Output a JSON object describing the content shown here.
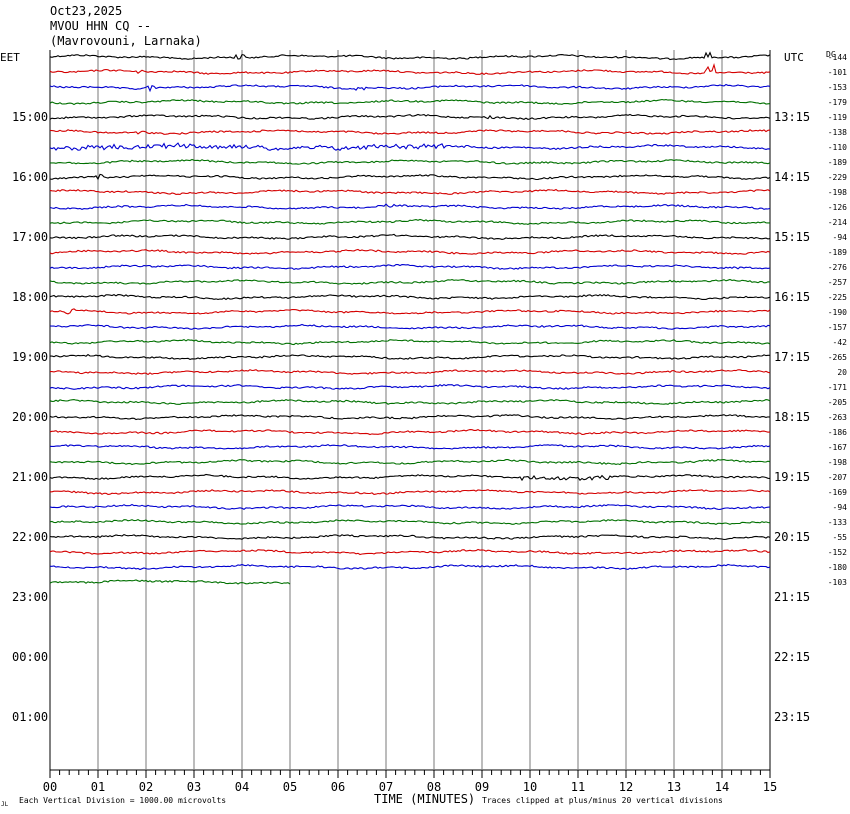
{
  "header": {
    "date": "Oct23,2025",
    "station": "MVOU HHN CQ --",
    "location": "(Mavrovouni, Larnaka)"
  },
  "chart_data": {
    "type": "line",
    "title": "",
    "left_zone": "EET",
    "right_zone": "UTC",
    "dc_label": "DC",
    "xlabel": "TIME (MINUTES)",
    "x_ticks": [
      "00",
      "01",
      "02",
      "03",
      "04",
      "05",
      "06",
      "07",
      "08",
      "09",
      "10",
      "11",
      "12",
      "13",
      "14",
      "15"
    ],
    "xlim": [
      0,
      15
    ],
    "left_hour_labels": [
      "15:00",
      "16:00",
      "17:00",
      "18:00",
      "19:00",
      "20:00",
      "21:00",
      "22:00",
      "23:00",
      "00:00",
      "01:00"
    ],
    "right_hour_labels": [
      "13:15",
      "14:15",
      "15:15",
      "16:15",
      "17:15",
      "18:15",
      "19:15",
      "20:15",
      "21:15",
      "22:15",
      "23:15"
    ],
    "trace_colors": [
      "#000000",
      "#d40000",
      "#0000d0",
      "#007000"
    ],
    "dc_offsets": [
      "-144",
      "-101",
      "-153",
      "-179",
      "-119",
      "-138",
      "-110",
      "-189",
      "-229",
      "-198",
      "-126",
      "-214",
      "-94",
      "-189",
      "-276",
      "-257",
      "-225",
      "-190",
      "-157",
      "-42",
      "-265",
      "20",
      "-171",
      "-205",
      "-263",
      "-186",
      "-167",
      "-198",
      "-207",
      "-169",
      "-94",
      "-133",
      "-55",
      "-152",
      "-180",
      "-103"
    ],
    "trace_count": 36,
    "last_trace_end_minute": 5,
    "footer_left": "Each Vertical Division = 1000.00 microvolts",
    "footer_right": "Traces clipped at plus/minus 20 vertical divisions",
    "logo_text": "JL"
  }
}
